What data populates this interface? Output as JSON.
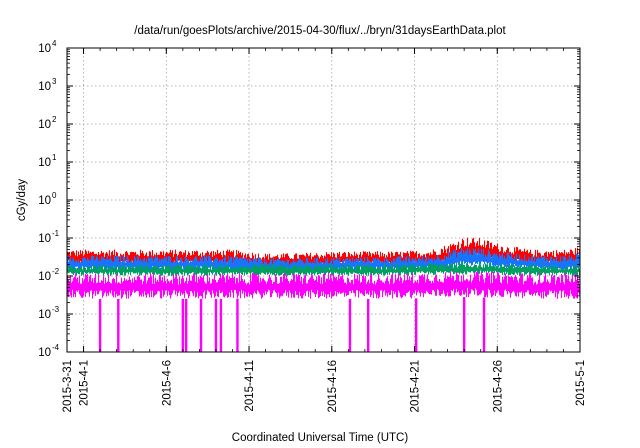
{
  "chart_data": {
    "type": "line",
    "title": "/data/run/goesPlots/archive/2015-04-30/flux/../bryn/31daysEarthData.plot",
    "xlabel": "Coordinated Universal Time (UTC)",
    "ylabel": "cGy/day",
    "y_scale": "log",
    "ylim": [
      0.0001,
      10000
    ],
    "y_ticks": [
      {
        "value": 0.0001,
        "base": "10",
        "exp": "-4"
      },
      {
        "value": 0.001,
        "base": "10",
        "exp": "-3"
      },
      {
        "value": 0.01,
        "base": "10",
        "exp": "-2"
      },
      {
        "value": 0.1,
        "base": "10",
        "exp": "-1"
      },
      {
        "value": 1,
        "base": "10",
        "exp": "0"
      },
      {
        "value": 10,
        "base": "10",
        "exp": "1"
      },
      {
        "value": 100,
        "base": "10",
        "exp": "2"
      },
      {
        "value": 1000,
        "base": "10",
        "exp": "3"
      },
      {
        "value": 10000,
        "base": "10",
        "exp": "4"
      }
    ],
    "xlim": [
      "2015-03-31",
      "2015-05-01"
    ],
    "x_ticks": [
      {
        "date": "2015-03-31",
        "label": "2015-3-31"
      },
      {
        "date": "2015-04-01",
        "label": "2015-4-1"
      },
      {
        "date": "2015-04-06",
        "label": "2015-4-6"
      },
      {
        "date": "2015-04-11",
        "label": "2015-4-11"
      },
      {
        "date": "2015-04-16",
        "label": "2015-4-16"
      },
      {
        "date": "2015-04-21",
        "label": "2015-4-21"
      },
      {
        "date": "2015-04-26",
        "label": "2015-4-26"
      },
      {
        "date": "2015-05-01",
        "label": "2015-5-1"
      }
    ],
    "grid": true,
    "series": [
      {
        "color": "#ff0000",
        "x": [
          "2015-03-31",
          "2015-04-02",
          "2015-04-04",
          "2015-04-06",
          "2015-04-08",
          "2015-04-10",
          "2015-04-12",
          "2015-04-14",
          "2015-04-16",
          "2015-04-18",
          "2015-04-20",
          "2015-04-22",
          "2015-04-23",
          "2015-04-24",
          "2015-04-25",
          "2015-04-26",
          "2015-04-27",
          "2015-04-28",
          "2015-04-30",
          "2015-05-01"
        ],
        "low": [
          0.018,
          0.018,
          0.018,
          0.018,
          0.018,
          0.017,
          0.016,
          0.016,
          0.017,
          0.018,
          0.017,
          0.018,
          0.02,
          0.025,
          0.025,
          0.022,
          0.02,
          0.018,
          0.018,
          0.018
        ],
        "high": [
          0.05,
          0.05,
          0.05,
          0.05,
          0.05,
          0.05,
          0.04,
          0.04,
          0.045,
          0.045,
          0.045,
          0.05,
          0.07,
          0.11,
          0.1,
          0.075,
          0.06,
          0.05,
          0.05,
          0.06
        ]
      },
      {
        "color": "#1874ff",
        "x": [
          "2015-03-31",
          "2015-04-02",
          "2015-04-04",
          "2015-04-06",
          "2015-04-08",
          "2015-04-10",
          "2015-04-12",
          "2015-04-14",
          "2015-04-16",
          "2015-04-18",
          "2015-04-20",
          "2015-04-22",
          "2015-04-23",
          "2015-04-24",
          "2015-04-25",
          "2015-04-26",
          "2015-04-27",
          "2015-04-28",
          "2015-04-30",
          "2015-05-01"
        ],
        "low": [
          0.013,
          0.013,
          0.013,
          0.013,
          0.013,
          0.012,
          0.012,
          0.012,
          0.012,
          0.013,
          0.013,
          0.013,
          0.014,
          0.017,
          0.017,
          0.016,
          0.015,
          0.014,
          0.013,
          0.013
        ],
        "high": [
          0.035,
          0.035,
          0.035,
          0.035,
          0.035,
          0.035,
          0.03,
          0.03,
          0.032,
          0.032,
          0.033,
          0.035,
          0.045,
          0.06,
          0.055,
          0.045,
          0.04,
          0.036,
          0.035,
          0.04
        ]
      },
      {
        "color": "#00a060",
        "x": [
          "2015-03-31",
          "2015-04-10",
          "2015-04-20",
          "2015-04-24",
          "2015-04-28",
          "2015-05-01"
        ],
        "low": [
          0.01,
          0.01,
          0.01,
          0.011,
          0.01,
          0.01
        ],
        "high": [
          0.02,
          0.02,
          0.02,
          0.024,
          0.02,
          0.02
        ]
      },
      {
        "color": "#ff00ff",
        "x": [
          "2015-03-31",
          "2015-04-05",
          "2015-04-10",
          "2015-04-15",
          "2015-04-20",
          "2015-04-24",
          "2015-04-28",
          "2015-05-01"
        ],
        "low": [
          0.0025,
          0.0025,
          0.0025,
          0.0025,
          0.0025,
          0.0028,
          0.0025,
          0.0025
        ],
        "high": [
          0.012,
          0.012,
          0.012,
          0.012,
          0.012,
          0.014,
          0.012,
          0.012
        ],
        "dips": [
          {
            "date": "2015-04-02.0",
            "value": 0.0001
          },
          {
            "date": "2015-04-03.1",
            "value": 0.0001
          },
          {
            "date": "2015-04-07.0",
            "value": 0.0001
          },
          {
            "date": "2015-04-07.2",
            "value": 0.0001
          },
          {
            "date": "2015-04-08.1",
            "value": 0.0001
          },
          {
            "date": "2015-04-09.0",
            "value": 0.0001
          },
          {
            "date": "2015-04-09.3",
            "value": 0.0001
          },
          {
            "date": "2015-04-10.3",
            "value": 0.0001
          },
          {
            "date": "2015-04-17.1",
            "value": 0.0001
          },
          {
            "date": "2015-04-18.2",
            "value": 0.0001
          },
          {
            "date": "2015-04-21.1",
            "value": 0.0001
          },
          {
            "date": "2015-04-24.0",
            "value": 0.0001
          },
          {
            "date": "2015-04-25.2",
            "value": 0.0001
          }
        ]
      }
    ]
  }
}
